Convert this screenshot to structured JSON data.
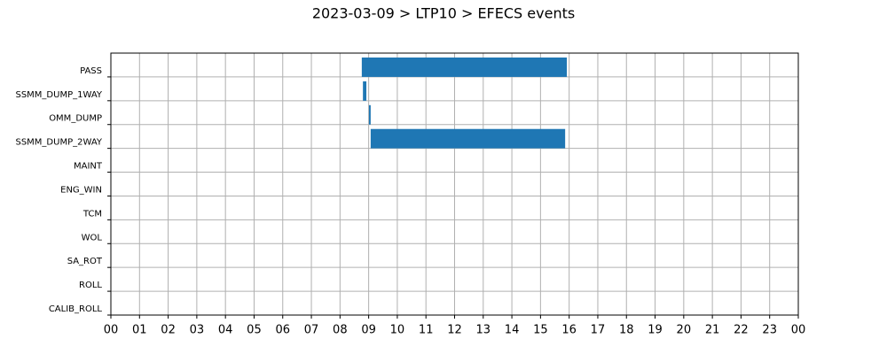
{
  "chart_data": {
    "type": "timeline",
    "title": "2023-03-09 > LTP10 > EFECS events",
    "categories": [
      "PASS",
      "SSMM_DUMP_1WAY",
      "OMM_DUMP",
      "SSMM_DUMP_2WAY",
      "MAINT",
      "ENG_WIN",
      "TCM",
      "WOL",
      "SA_ROT",
      "ROLL",
      "CALIB_ROLL"
    ],
    "start": [
      8.76,
      8.8,
      9.01,
      9.07,
      null,
      null,
      null,
      null,
      null,
      null,
      null
    ],
    "end": [
      15.92,
      8.92,
      9.07,
      15.86,
      null,
      null,
      null,
      null,
      null,
      null,
      null
    ],
    "color": "#1f77b4",
    "xlim": [
      0,
      24
    ],
    "xticks": [
      {
        "value": 0,
        "label": "00"
      },
      {
        "value": 1,
        "label": "01"
      },
      {
        "value": 2,
        "label": "02"
      },
      {
        "value": 3,
        "label": "03"
      },
      {
        "value": 4,
        "label": "04"
      },
      {
        "value": 5,
        "label": "05"
      },
      {
        "value": 6,
        "label": "06"
      },
      {
        "value": 7,
        "label": "07"
      },
      {
        "value": 8,
        "label": "08"
      },
      {
        "value": 9,
        "label": "09"
      },
      10,
      11,
      12,
      13,
      14,
      15,
      16,
      17,
      18,
      19,
      20,
      21,
      22,
      23,
      {
        "value": 24,
        "label": "00"
      }
    ],
    "grid": true
  }
}
